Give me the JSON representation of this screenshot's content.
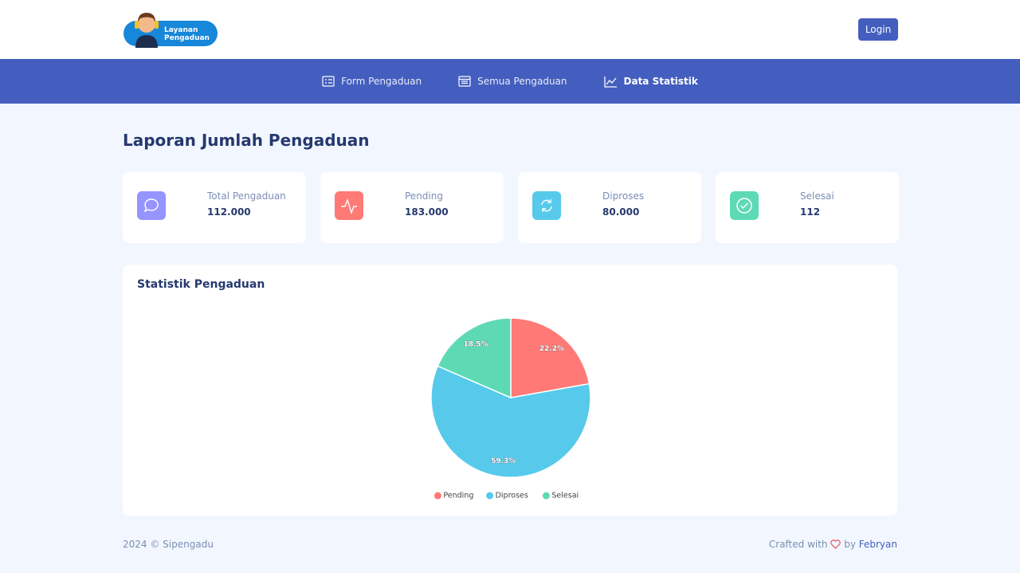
{
  "header": {
    "logo_line1": "Layanan",
    "logo_line2": "Pengaduan",
    "login": "Login"
  },
  "nav": [
    {
      "label": "Form Pengaduan"
    },
    {
      "label": "Semua Pengaduan"
    },
    {
      "label": "Data Statistik"
    }
  ],
  "page_title": "Laporan Jumlah Pengaduan",
  "cards": [
    {
      "label": "Total Pengaduan",
      "value": "112.000"
    },
    {
      "label": "Pending",
      "value": "183.000"
    },
    {
      "label": "Diproses",
      "value": "80.000"
    },
    {
      "label": "Selesai",
      "value": "112"
    }
  ],
  "chart_data": {
    "type": "pie",
    "title": "Statistik Pengaduan",
    "categories": [
      "Pending",
      "Diproses",
      "Selesai"
    ],
    "values": [
      22.2,
      59.3,
      18.5
    ],
    "value_labels": [
      "22.2%",
      "59.3%",
      "18.5%"
    ],
    "colors": [
      "#ff7976",
      "#57caeb",
      "#5ddab4"
    ],
    "legend": "bottom"
  },
  "footer": {
    "copyright": "2024 © Sipengadu",
    "crafted": "Crafted with",
    "by": "by",
    "author": "Febryan"
  }
}
